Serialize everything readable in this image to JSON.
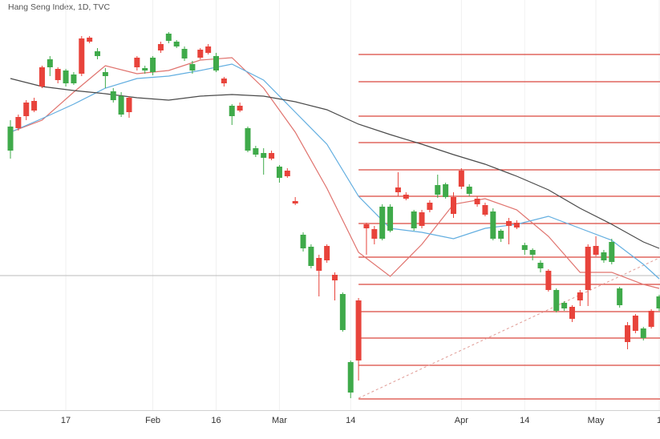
{
  "chart_data": {
    "type": "candlestick",
    "title": "Hang Seng Index, 1D, TVC",
    "categories": [
      null,
      null,
      null,
      null,
      null,
      null,
      null,
      "17",
      null,
      null,
      null,
      null,
      null,
      null,
      null,
      null,
      null,
      null,
      "Feb",
      null,
      null,
      null,
      null,
      null,
      null,
      null,
      "16",
      null,
      null,
      null,
      null,
      null,
      null,
      null,
      "Mar",
      null,
      null,
      null,
      null,
      null,
      null,
      null,
      null,
      "14",
      null,
      null,
      null,
      null,
      null,
      null,
      null,
      null,
      null,
      null,
      null,
      null,
      null,
      "Apr",
      null,
      null,
      null,
      null,
      null,
      null,
      null,
      "14",
      null,
      null,
      null,
      null,
      null,
      null,
      null,
      null,
      "May",
      null,
      null,
      null,
      null,
      null,
      null,
      null,
      "1"
    ],
    "open": [
      332,
      374,
      392,
      394,
      436,
      436,
      434,
      416,
      416,
      472,
      473,
      450,
      425,
      395,
      377,
      398,
      448,
      432,
      430,
      465,
      469,
      462,
      447,
      432,
      458,
      462,
      432,
      422,
      375,
      388,
      332,
      327,
      323,
      329,
      298,
      307,
      269,
      210,
      188,
      198,
      213,
      177,
      108,
      30,
      145,
      240,
      234,
      222,
      232,
      286,
      277,
      235,
      255,
      267,
      277,
      274,
      274,
      307,
      278,
      272,
      264,
      222,
      222,
      244,
      242,
      208,
      202,
      185,
      182,
      132,
      135,
      137,
      155,
      212,
      213,
      195,
      193,
      139,
      114,
      126,
      98,
      132,
      135
    ],
    "high": [
      370,
      377,
      395,
      398,
      438,
      450,
      436,
      434,
      430,
      475,
      475,
      460,
      435,
      410,
      405,
      400,
      450,
      438,
      450,
      468,
      480,
      470,
      462,
      444,
      460,
      465,
      454,
      424,
      390,
      392,
      362,
      338,
      335,
      332,
      314,
      310,
      274,
      230,
      215,
      202,
      215,
      180,
      155,
      70,
      148,
      242,
      238,
      265,
      265,
      305,
      280,
      258,
      258,
      270,
      302,
      292,
      280,
      310,
      290,
      275,
      267,
      260,
      234,
      248,
      245,
      217,
      210,
      195,
      184,
      160,
      144,
      139,
      158,
      215,
      225,
      208,
      222,
      162,
      118,
      128,
      112,
      134,
      152
    ],
    "low": [
      322,
      357,
      370,
      380,
      410,
      425,
      416,
      412,
      414,
      425,
      466,
      446,
      410,
      392,
      374,
      373,
      432,
      428,
      426,
      454,
      466,
      460,
      444,
      428,
      446,
      452,
      430,
      412,
      364,
      380,
      330,
      324,
      302,
      320,
      292,
      298,
      264,
      206,
      185,
      150,
      192,
      145,
      106,
      23,
      45,
      202,
      215,
      220,
      230,
      275,
      270,
      232,
      235,
      255,
      273,
      272,
      248,
      284,
      275,
      262,
      250,
      220,
      218,
      215,
      234,
      202,
      195,
      180,
      156,
      130,
      132,
      118,
      138,
      138,
      200,
      192,
      190,
      136,
      84,
      104,
      95,
      110,
      132
    ],
    "close": [
      362,
      360,
      375,
      382,
      412,
      446,
      420,
      432,
      427,
      428,
      468,
      456,
      430,
      406,
      400,
      380,
      436,
      435,
      448,
      457,
      478,
      468,
      459,
      440,
      448,
      454,
      450,
      416,
      388,
      382,
      360,
      335,
      329,
      322,
      312,
      300,
      266,
      227,
      212,
      182,
      195,
      170,
      153,
      68,
      70,
      235,
      222,
      262,
      262,
      280,
      272,
      256,
      238,
      258,
      289,
      290,
      253,
      287,
      287,
      265,
      252,
      256,
      232,
      238,
      236,
      214,
      208,
      192,
      158,
      158,
      142,
      122,
      145,
      158,
      202,
      205,
      218,
      160,
      93,
      107,
      110,
      112,
      150
    ],
    "up_color": "#3faa4a",
    "down_color": "#e8433b",
    "ylim": [
      8,
      520
    ],
    "grid": true,
    "series": [
      {
        "color": "#e0736e",
        "x": [
          0,
          4,
          8,
          12,
          16,
          20,
          24,
          28,
          32,
          36,
          40,
          44,
          48,
          52,
          56,
          60,
          64,
          68,
          72,
          76,
          80,
          82
        ],
        "values": [
          355,
          370,
          405,
          438,
          428,
          432,
          445,
          448,
          410,
          355,
          285,
          205,
          175,
          215,
          265,
          272,
          258,
          225,
          180,
          180,
          165,
          160
        ]
      },
      {
        "color": "#62aee0",
        "x": [
          0,
          4,
          8,
          12,
          16,
          20,
          24,
          28,
          32,
          36,
          40,
          44,
          48,
          52,
          56,
          60,
          64,
          68,
          72,
          76,
          80,
          82
        ],
        "values": [
          355,
          372,
          390,
          410,
          422,
          425,
          432,
          440,
          420,
          380,
          340,
          275,
          235,
          230,
          222,
          235,
          240,
          250,
          235,
          220,
          190,
          172
        ]
      },
      {
        "color": "#4a4a4a",
        "x": [
          0,
          4,
          8,
          12,
          16,
          20,
          24,
          28,
          32,
          36,
          40,
          44,
          48,
          52,
          56,
          60,
          64,
          68,
          72,
          76,
          80,
          82
        ],
        "values": [
          422,
          412,
          407,
          403,
          398,
          395,
          400,
          402,
          400,
          393,
          383,
          365,
          352,
          340,
          327,
          315,
          300,
          283,
          260,
          240,
          218,
          210
        ]
      }
    ],
    "levels": {
      "color": "#d9483f",
      "start": 44,
      "values": [
        452,
        418,
        375,
        342,
        308,
        275,
        241,
        199,
        165,
        131,
        98,
        64,
        22
      ]
    },
    "trendline": {
      "color": "#e09b95",
      "x": [
        44,
        82
      ],
      "values": [
        23,
        198
      ]
    },
    "price_line": {
      "color": "#bbbbbb",
      "value": 176
    }
  }
}
